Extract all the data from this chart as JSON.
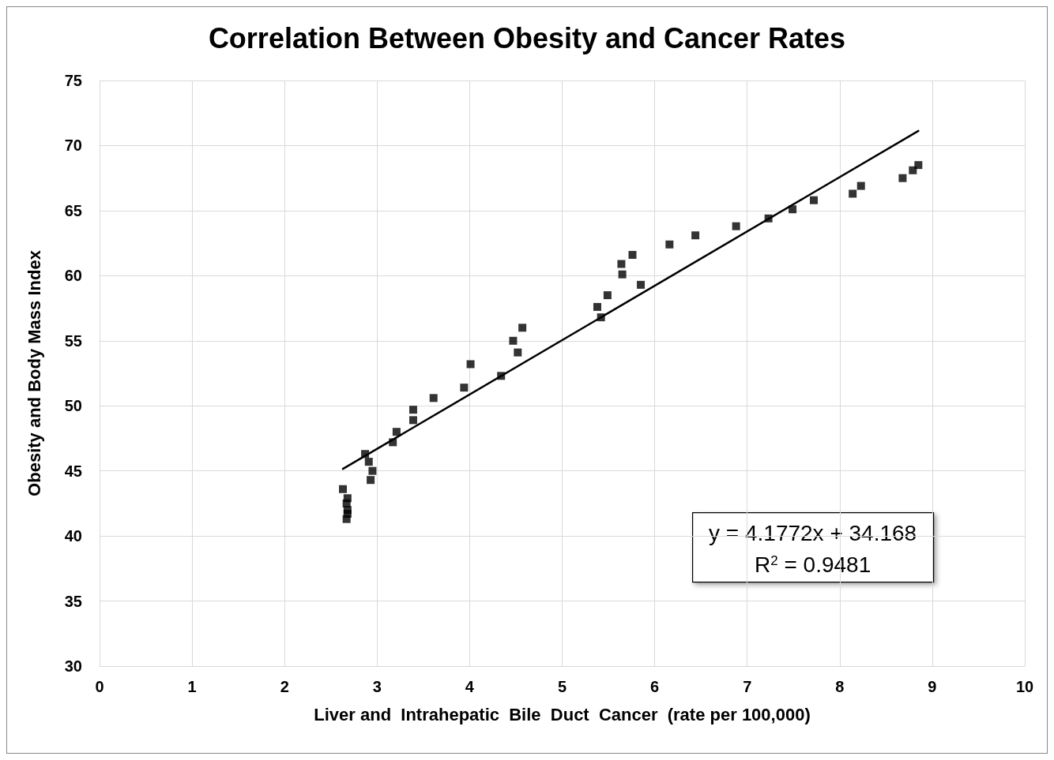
{
  "chart_data": {
    "type": "scatter",
    "title": "Correlation Between Obesity and Cancer Rates",
    "xlabel": "Liver and  Intrahepatic  Bile  Duct  Cancer  (rate per 100,000)",
    "ylabel": "Obesity and Body Mass Index",
    "xlim": [
      0,
      10
    ],
    "xticks": [
      0,
      1,
      2,
      3,
      4,
      5,
      6,
      7,
      8,
      9,
      10
    ],
    "ylim": [
      30,
      75
    ],
    "yticks": [
      30,
      35,
      40,
      45,
      50,
      55,
      60,
      65,
      70,
      75
    ],
    "grid": true,
    "marker": "square",
    "annotations": [
      "y = 4.1772x + 34.168",
      "R$^{2}$ = 0.9481"
    ],
    "series": [
      {
        "color": "#000000",
        "x": [
          2.63,
          2.68,
          2.67,
          2.68,
          2.68,
          2.67,
          2.87,
          2.91,
          2.95,
          2.93,
          3.17,
          3.21,
          3.39,
          3.39,
          3.61,
          3.94,
          4.01,
          4.34,
          4.47,
          4.52,
          4.57,
          5.38,
          5.42,
          5.49,
          5.64,
          5.65,
          5.76,
          5.85,
          6.16,
          6.44,
          6.88,
          7.23,
          7.49,
          7.72,
          8.14,
          8.23,
          8.68,
          8.79,
          8.85
        ],
        "values": [
          43.6,
          42.9,
          42.5,
          42.0,
          41.7,
          41.3,
          46.3,
          45.7,
          45.0,
          44.3,
          47.2,
          48.0,
          48.9,
          49.7,
          50.6,
          51.4,
          53.2,
          52.3,
          55.0,
          54.1,
          56.0,
          57.6,
          56.8,
          58.5,
          60.9,
          60.1,
          61.6,
          59.3,
          62.4,
          63.1,
          63.8,
          64.4,
          65.1,
          65.8,
          66.3,
          66.9,
          67.5,
          68.1,
          68.5
        ]
      },
      {
        "type": "line",
        "color": "#000000",
        "marker": "none",
        "line_style": "solid",
        "x": [
          2.63,
          8.85
        ],
        "values": [
          45.15,
          71.13
        ]
      }
    ]
  }
}
